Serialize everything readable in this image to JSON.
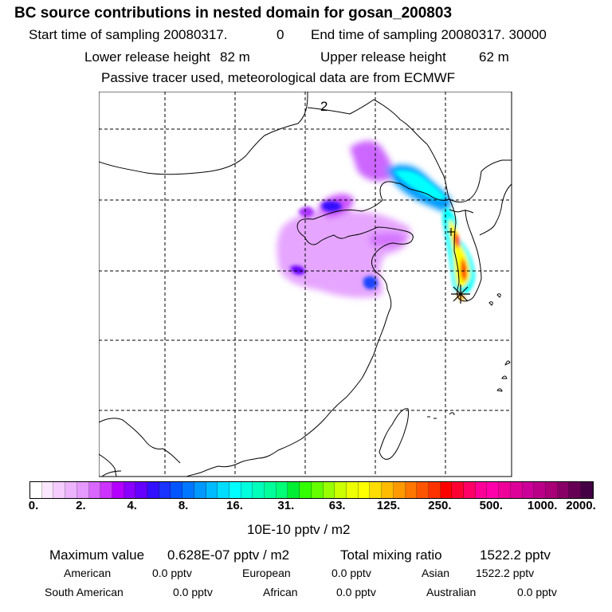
{
  "title": "BC  source contributions in nested domain for gosan_200803",
  "header": {
    "start_label": "Start time of sampling 20080317.",
    "start_value": "0",
    "end_label": "End time of sampling 20080317. 30000",
    "lower_label": "Lower release height",
    "lower_value": "82 m",
    "upper_label": "Upper release height",
    "upper_value": "62 m",
    "tracer_note": "Passive tracer used, meteorological data are from ECMWF"
  },
  "map": {
    "grid_label": "2",
    "station_marker": "Gosan"
  },
  "colorbar": {
    "unit": "10E-10 pptv / m2",
    "ticks": [
      "0.",
      "2.",
      "4.",
      "8.",
      "16.",
      "31.",
      "63.",
      "125.",
      "250.",
      "500.",
      "1000.",
      "2000."
    ],
    "colors": [
      "#ffffff",
      "#fbe6ff",
      "#f5ccff",
      "#eeb3ff",
      "#e699ff",
      "#d966ff",
      "#cc33ff",
      "#b300ff",
      "#8a00ff",
      "#6600ff",
      "#3311ff",
      "#1a33ff",
      "#0055ff",
      "#0077ff",
      "#0099ff",
      "#00bbff",
      "#00ddff",
      "#00ffff",
      "#00ffdd",
      "#00ffbb",
      "#00ff99",
      "#00ff77",
      "#00ee33",
      "#33ff00",
      "#66ff00",
      "#99ff00",
      "#ccff00",
      "#eeff00",
      "#ffff00",
      "#ffdd00",
      "#ffbb00",
      "#ff9900",
      "#ff7700",
      "#ff5500",
      "#ff3300",
      "#ff0000",
      "#ff0033",
      "#ff0066",
      "#ff0099",
      "#ff00aa",
      "#ee0099",
      "#dd0099",
      "#cc0099",
      "#bb0088",
      "#aa0077",
      "#880066",
      "#660055",
      "#440044"
    ]
  },
  "summary": {
    "max_label": "Maximum value",
    "max_value": "0.628E-07 pptv / m2",
    "total_label": "Total mixing ratio",
    "total_value": "1522.2 pptv",
    "regions": [
      {
        "name": "American",
        "value": "0.0 pptv"
      },
      {
        "name": "European",
        "value": "0.0 pptv"
      },
      {
        "name": "Asian",
        "value": "1522.2 pptv"
      },
      {
        "name": "South American",
        "value": "0.0 pptv"
      },
      {
        "name": "African",
        "value": "0.0 pptv"
      },
      {
        "name": "Australian",
        "value": "0.0 pptv"
      }
    ]
  }
}
